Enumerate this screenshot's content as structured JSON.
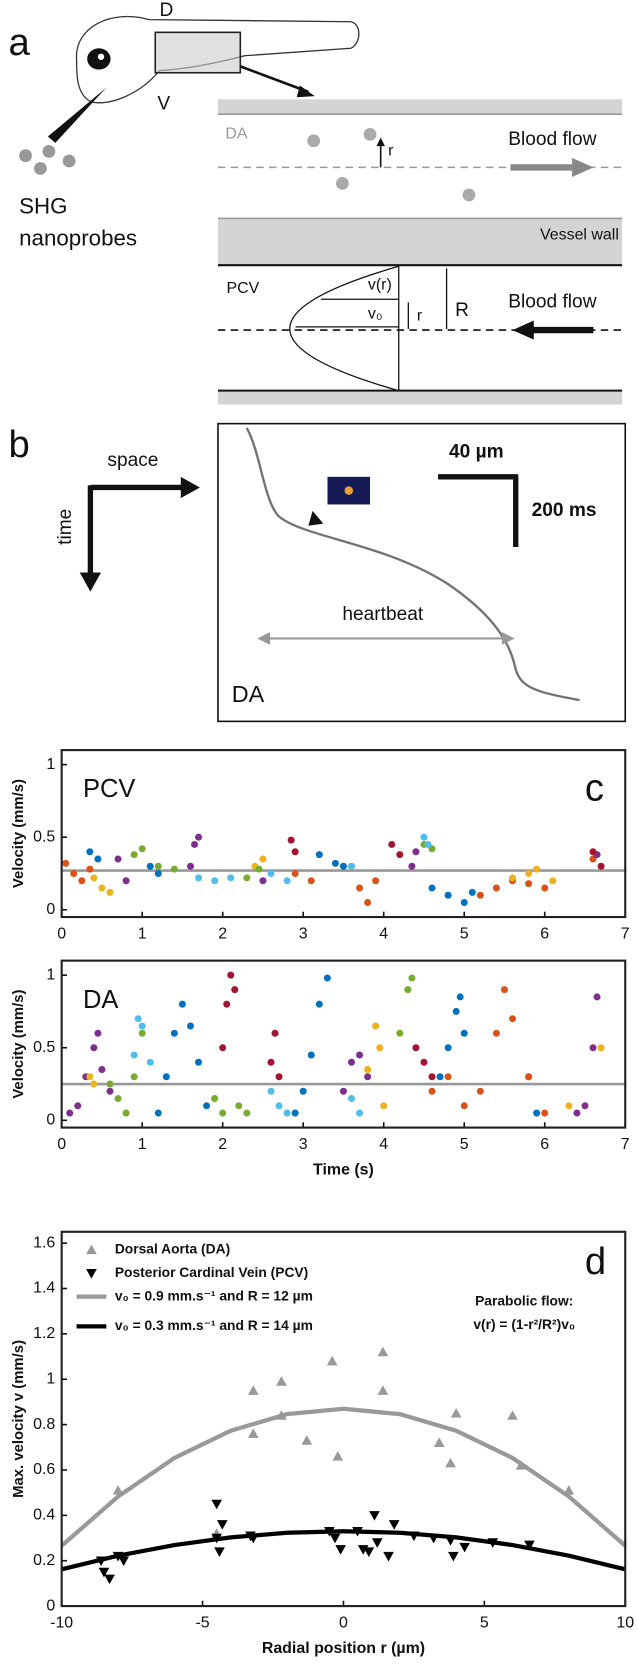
{
  "panel_a": {
    "letter": "a",
    "dorsal": "D",
    "ventral": "V",
    "probes_1": "SHG",
    "probes_2": "nanoprobes",
    "da": "DA",
    "r_top": "r",
    "flow_top": "Blood flow",
    "wall": "Vessel wall",
    "pcv": "PCV",
    "vr": "v(r)",
    "v0": "v₀",
    "r_bottom": "r",
    "R": "R",
    "flow_bottom": "Blood flow"
  },
  "panel_b": {
    "letter": "b",
    "space": "space",
    "time": "time",
    "scale_x": "40 µm",
    "scale_t": "200 ms",
    "heartbeat": "heartbeat",
    "da": "DA"
  },
  "chart_data": [
    {
      "type": "scatter",
      "panel_letter": "c",
      "label": "PCV",
      "ylabel": "Velocity (mm/s)",
      "xlim": [
        0,
        7
      ],
      "xticks": [
        0,
        1,
        2,
        3,
        4,
        5,
        6,
        7
      ],
      "ylim": [
        -0.05,
        1.1
      ],
      "yticks": [
        0,
        0.5,
        1
      ],
      "reference_line": 0.27,
      "reference_color": "#999999",
      "series": [
        {
          "color": "#d95319",
          "x": [
            0.05,
            0.15,
            0.25,
            0.35,
            2.9,
            3.1,
            3.7,
            3.8,
            3.9,
            5.2,
            5.4,
            5.6,
            5.8,
            6.0,
            6.6
          ],
          "values": [
            0.32,
            0.25,
            0.2,
            0.28,
            0.25,
            0.2,
            0.15,
            0.05,
            0.2,
            0.1,
            0.15,
            0.2,
            0.18,
            0.15,
            0.35
          ]
        },
        {
          "color": "#edb120",
          "x": [
            0.4,
            0.5,
            0.6,
            2.4,
            2.5,
            5.6,
            5.8,
            5.9,
            6.1
          ],
          "values": [
            0.22,
            0.15,
            0.12,
            0.3,
            0.35,
            0.22,
            0.25,
            0.28,
            0.2
          ]
        },
        {
          "color": "#7e2f8e",
          "x": [
            0.7,
            0.8,
            1.6,
            1.65,
            1.7,
            2.5,
            4.35,
            4.4,
            6.65
          ],
          "values": [
            0.35,
            0.2,
            0.3,
            0.45,
            0.5,
            0.2,
            0.3,
            0.4,
            0.38
          ]
        },
        {
          "color": "#77ac30",
          "x": [
            0.9,
            1.0,
            1.2,
            1.4,
            2.3,
            2.45,
            4.5,
            4.6
          ],
          "values": [
            0.38,
            0.42,
            0.3,
            0.28,
            0.22,
            0.28,
            0.45,
            0.42
          ]
        },
        {
          "color": "#0072bd",
          "x": [
            0.35,
            0.45,
            1.1,
            1.2,
            3.2,
            3.4,
            3.5,
            4.6,
            4.8,
            5.0,
            5.1
          ],
          "values": [
            0.4,
            0.35,
            0.3,
            0.25,
            0.38,
            0.32,
            0.3,
            0.15,
            0.1,
            0.05,
            0.12
          ]
        },
        {
          "color": "#4dbeee",
          "x": [
            1.7,
            1.9,
            2.1,
            2.6,
            2.8,
            3.6,
            4.5,
            4.55
          ],
          "values": [
            0.22,
            0.2,
            0.22,
            0.25,
            0.2,
            0.3,
            0.5,
            0.45
          ]
        },
        {
          "color": "#a2142f",
          "x": [
            2.85,
            2.9,
            4.1,
            4.2,
            6.6,
            6.7
          ],
          "values": [
            0.48,
            0.4,
            0.45,
            0.38,
            0.4,
            0.3
          ]
        }
      ]
    },
    {
      "type": "scatter",
      "label": "DA",
      "ylabel": "Velocity (mm/s)",
      "xlabel": "Time (s)",
      "xlim": [
        0,
        7
      ],
      "xticks": [
        0,
        1,
        2,
        3,
        4,
        5,
        6,
        7
      ],
      "ylim": [
        -0.05,
        1.1
      ],
      "yticks": [
        0,
        0.5,
        1
      ],
      "reference_line": 0.25,
      "reference_color": "#999999",
      "series": [
        {
          "color": "#7e2f8e",
          "x": [
            0.1,
            0.2,
            0.3,
            0.4,
            0.45,
            0.5,
            0.6,
            3.5,
            3.6,
            3.7,
            3.8,
            6.4,
            6.5,
            6.6,
            6.65
          ],
          "values": [
            0.05,
            0.1,
            0.3,
            0.5,
            0.6,
            0.35,
            0.2,
            0.2,
            0.4,
            0.45,
            0.3,
            0.05,
            0.1,
            0.5,
            0.85
          ]
        },
        {
          "color": "#77ac30",
          "x": [
            0.6,
            0.7,
            0.8,
            0.9,
            1.0,
            1.9,
            2.0,
            2.2,
            2.3,
            4.2,
            4.3,
            4.35
          ],
          "values": [
            0.25,
            0.15,
            0.05,
            0.3,
            0.6,
            0.15,
            0.05,
            0.1,
            0.05,
            0.6,
            0.9,
            0.98
          ]
        },
        {
          "color": "#0072bd",
          "x": [
            1.2,
            1.3,
            1.4,
            1.5,
            1.6,
            1.7,
            1.8,
            2.9,
            3.0,
            3.1,
            3.2,
            3.3,
            4.7,
            4.8,
            4.9,
            4.95,
            5.0,
            5.8,
            5.9
          ],
          "values": [
            0.05,
            0.3,
            0.6,
            0.8,
            0.65,
            0.4,
            0.1,
            0.05,
            0.2,
            0.45,
            0.8,
            0.98,
            0.3,
            0.5,
            0.75,
            0.85,
            0.6,
            0.3,
            0.05
          ]
        },
        {
          "color": "#4dbeee",
          "x": [
            0.9,
            0.95,
            1.0,
            1.1,
            2.6,
            2.7,
            2.8,
            3.6,
            3.7
          ],
          "values": [
            0.45,
            0.7,
            0.65,
            0.4,
            0.2,
            0.1,
            0.05,
            0.15,
            0.05
          ]
        },
        {
          "color": "#a2142f",
          "x": [
            2.0,
            2.05,
            2.1,
            2.15,
            2.6,
            2.65,
            2.7,
            4.4,
            4.5,
            4.6
          ],
          "values": [
            0.5,
            0.8,
            1.0,
            0.9,
            0.4,
            0.6,
            0.3,
            0.5,
            0.4,
            0.3
          ]
        },
        {
          "color": "#edb120",
          "x": [
            0.35,
            0.4,
            3.8,
            3.9,
            3.95,
            4.0,
            6.3,
            6.7
          ],
          "values": [
            0.3,
            0.25,
            0.35,
            0.65,
            0.5,
            0.1,
            0.1,
            0.5
          ]
        },
        {
          "color": "#d95319",
          "x": [
            4.6,
            4.8,
            5.0,
            5.2,
            5.4,
            5.5,
            5.6,
            5.8,
            6.0
          ],
          "values": [
            0.2,
            0.3,
            0.1,
            0.2,
            0.6,
            0.9,
            0.7,
            0.3,
            0.05
          ]
        }
      ]
    },
    {
      "type": "scatter",
      "panel_letter": "d",
      "xlabel": "Radial position r (µm)",
      "ylabel": "Max. velocity v (mm/s)",
      "xlim": [
        -10,
        10
      ],
      "xticks": [
        -10,
        -5,
        0,
        5,
        10
      ],
      "ylim": [
        0,
        1.65
      ],
      "yticks": [
        0,
        0.2,
        0.4,
        0.6,
        0.8,
        1,
        1.2,
        1.4,
        1.6
      ],
      "annotation": [
        "Parabolic flow:",
        "v(r) = (1-r²/R²)v₀"
      ],
      "series": [
        {
          "name": "Dorsal Aorta (DA)",
          "marker": "triangle-up",
          "color": "#999999",
          "x": [
            -8,
            -4.5,
            -3.2,
            -3.2,
            -2.2,
            -2.2,
            -1.3,
            -0.4,
            -0.2,
            1.4,
            1.4,
            3.4,
            3.8,
            4,
            6,
            6.3,
            8
          ],
          "values": [
            0.51,
            0.32,
            0.95,
            0.76,
            0.84,
            0.99,
            0.73,
            1.08,
            0.66,
            1.12,
            0.95,
            0.72,
            0.63,
            0.85,
            0.84,
            0.62,
            0.51
          ]
        },
        {
          "name": "Posterior Cardinal Vein (PCV)",
          "marker": "triangle-down",
          "color": "#000000",
          "x": [
            -8.6,
            -8.5,
            -8.3,
            -8,
            -7.8,
            -4.5,
            -4.5,
            -4.4,
            -4.3,
            -3.3,
            -3.2,
            -0.5,
            -0.3,
            -0.1,
            0.5,
            0.7,
            0.9,
            1.1,
            1.2,
            1.6,
            1.8,
            2.5,
            3.2,
            3.8,
            3.9,
            4.3,
            5.3,
            6.6
          ],
          "values": [
            0.2,
            0.15,
            0.12,
            0.22,
            0.2,
            0.45,
            0.3,
            0.24,
            0.36,
            0.31,
            0.3,
            0.33,
            0.3,
            0.25,
            0.33,
            0.25,
            0.24,
            0.4,
            0.28,
            0.22,
            0.36,
            0.31,
            0.3,
            0.29,
            0.22,
            0.26,
            0.28,
            0.27
          ]
        },
        {
          "name": "v₀ = 0.9 mm.s⁻¹ and R = 12 µm",
          "marker": "line",
          "color": "#999999",
          "x": [
            -10,
            -8,
            -6,
            -4,
            -2,
            0,
            2,
            4,
            6,
            8,
            10
          ],
          "values": [
            0.266,
            0.483,
            0.653,
            0.773,
            0.846,
            0.87,
            0.846,
            0.773,
            0.653,
            0.483,
            0.266
          ]
        },
        {
          "name": "v₀ = 0.3 mm.s⁻¹ and R = 14 µm",
          "marker": "line",
          "color": "#000000",
          "x": [
            -10,
            -8,
            -6,
            -4,
            -2,
            0,
            2,
            4,
            6,
            8,
            10
          ],
          "values": [
            0.162,
            0.222,
            0.269,
            0.303,
            0.323,
            0.33,
            0.323,
            0.303,
            0.269,
            0.222,
            0.162
          ]
        }
      ]
    }
  ]
}
